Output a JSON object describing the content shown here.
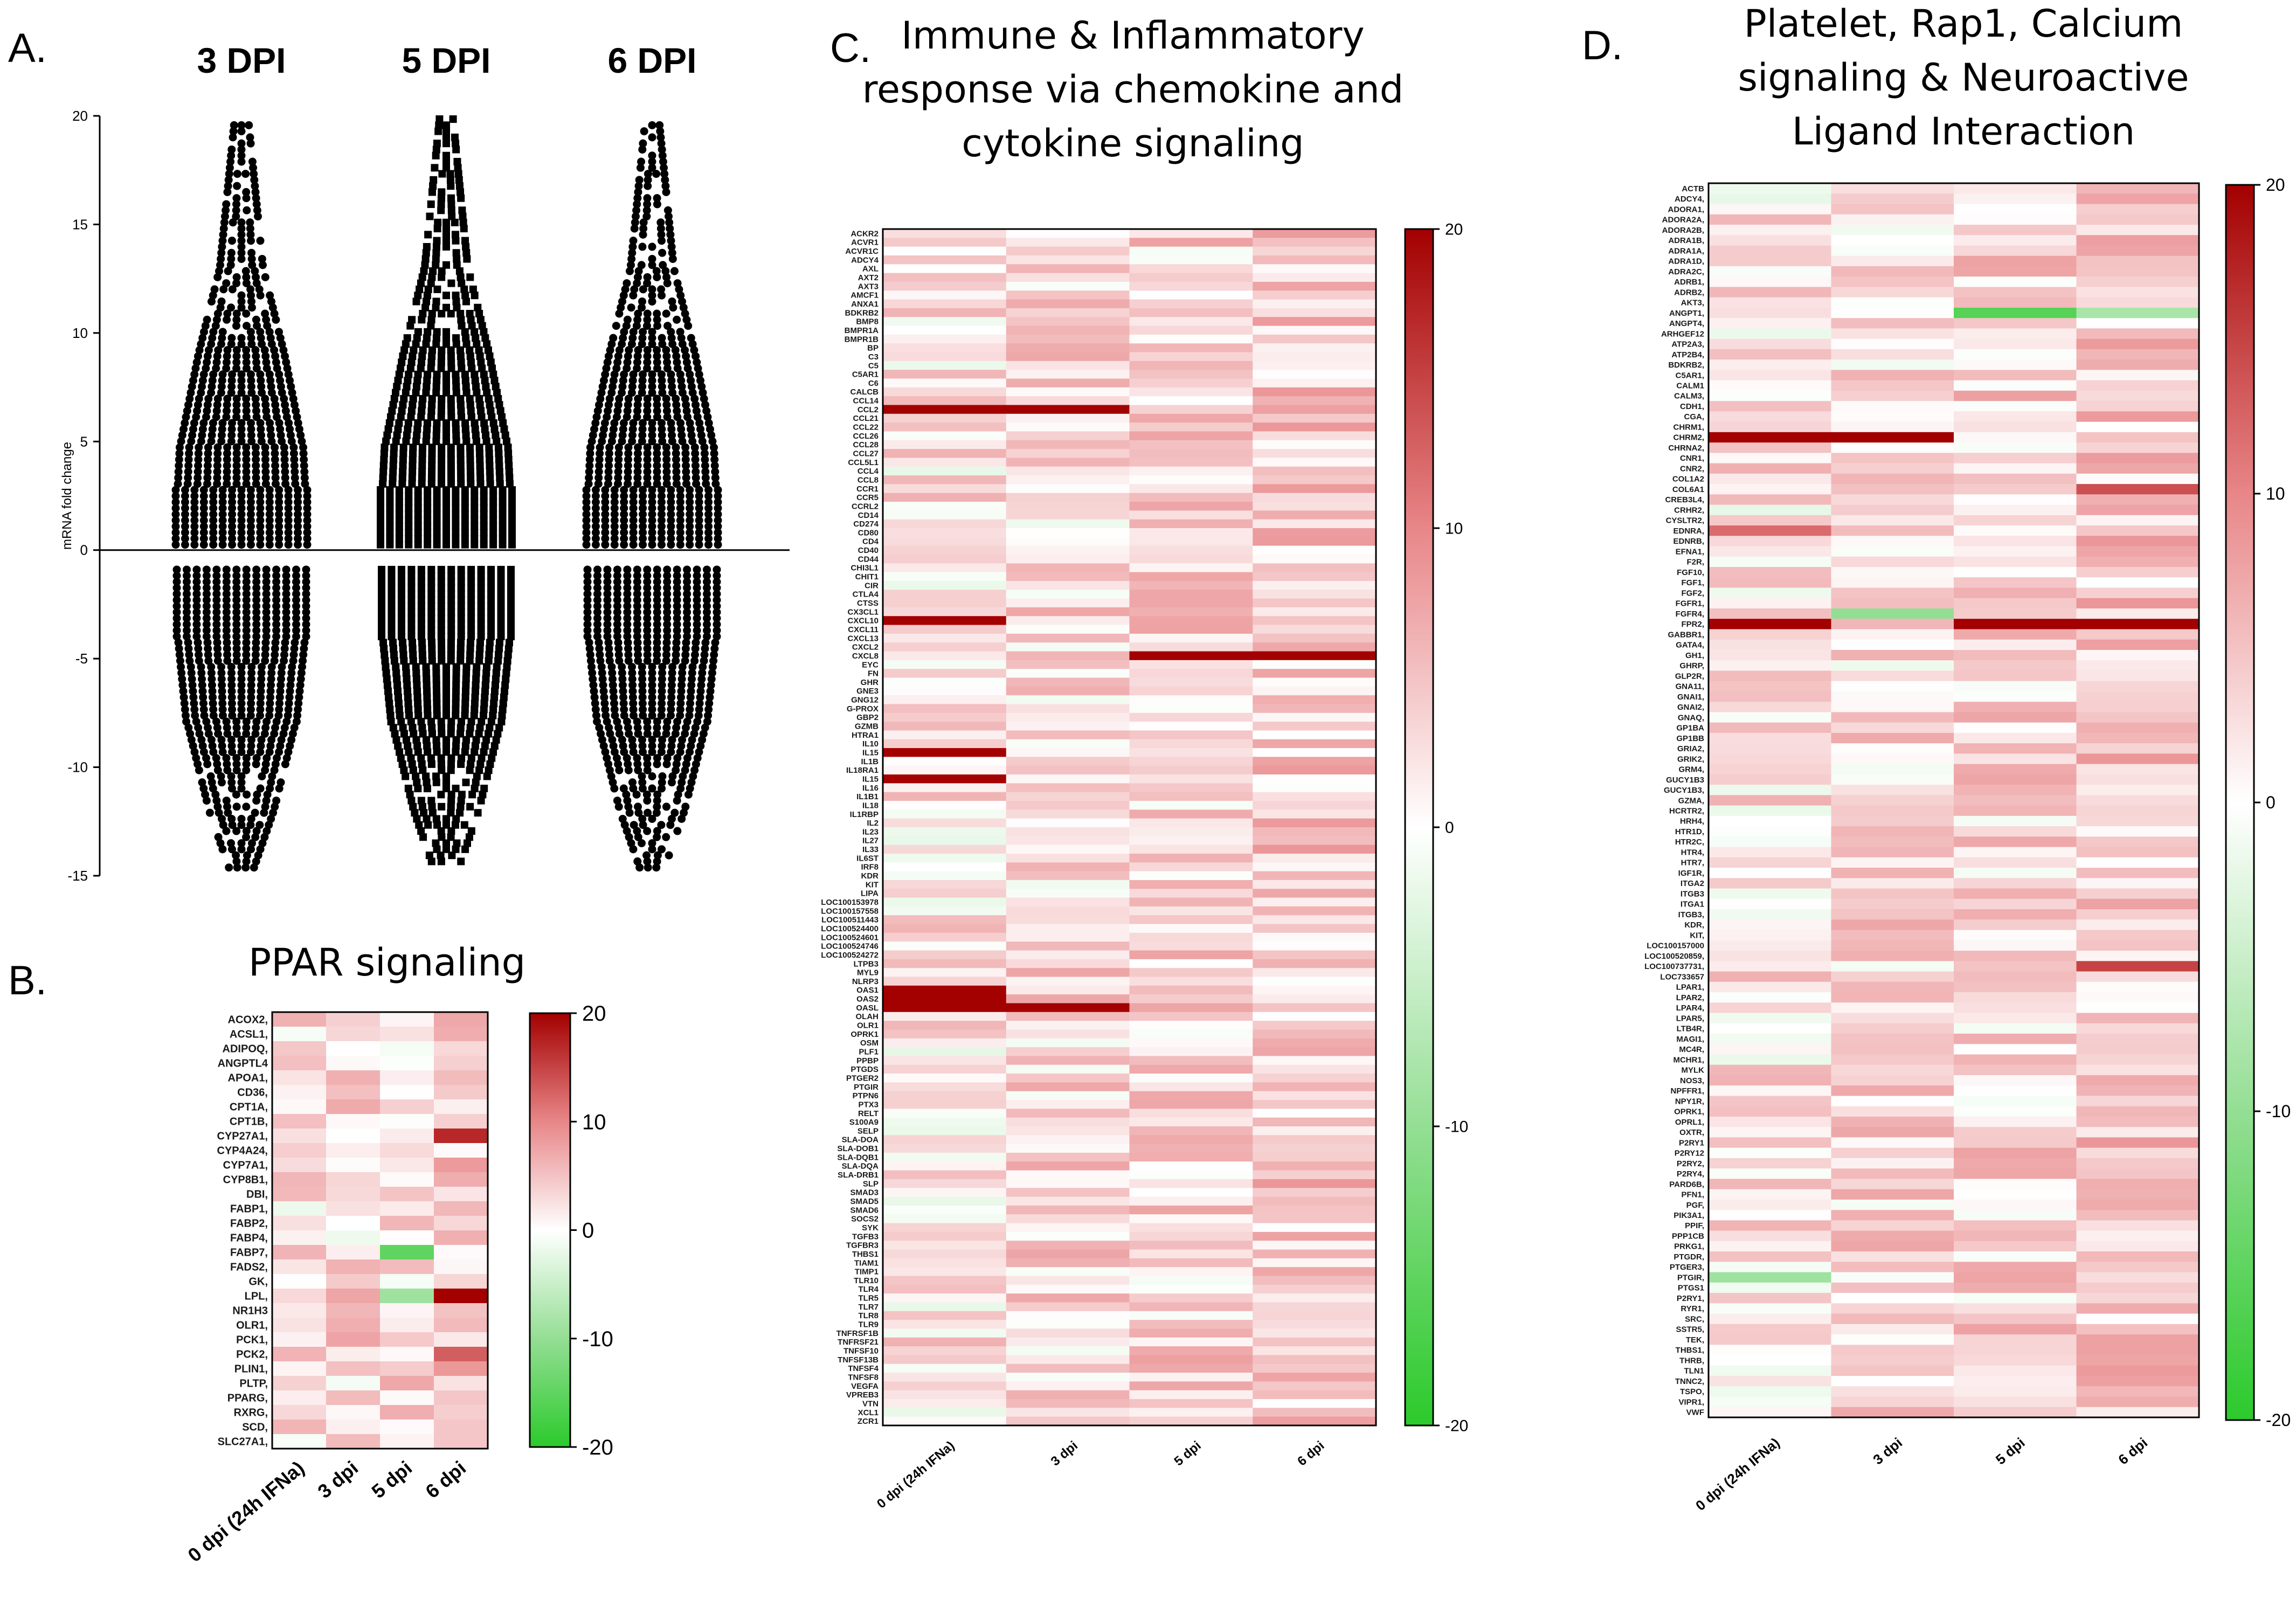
{
  "chart_data": [
    {
      "panel": "A.",
      "type": "scatter",
      "title": "",
      "ylabel": "mRNA fold change",
      "ylim": [
        -15,
        20
      ],
      "yticks": [
        -15,
        -10,
        -5,
        0,
        5,
        10,
        15,
        20
      ],
      "groups": [
        {
          "name": "3 DPI",
          "marker": "circle",
          "up_max": 19.7,
          "down_min": -14.7
        },
        {
          "name": "5 DPI",
          "marker": "square",
          "up_max": 19.9,
          "down_min": -14.5
        },
        {
          "name": "6 DPI",
          "marker": "circle",
          "up_max": 19.6,
          "down_min": -14.8
        }
      ]
    },
    {
      "panel": "B.",
      "type": "heatmap",
      "title": "PPAR signaling",
      "columns": [
        "0 dpi (24h IFNa)",
        "3 dpi",
        "5 dpi",
        "6 dpi"
      ],
      "colorbar": {
        "min": -20,
        "max": 20,
        "ticks": [
          "20",
          "10",
          "0",
          "-10",
          "-20"
        ]
      },
      "rows": [
        "ACOX2,",
        "ACSL1,",
        "ADIPOQ,",
        "ANGPTL4",
        "APOA1,",
        "CD36,",
        "CPT1A,",
        "CPT1B,",
        "CYP27A1,",
        "CYP4A24,",
        "CYP7A1,",
        "CYP8B1,",
        "DBI,",
        "FABP1,",
        "FABP2,",
        "FABP4,",
        "FABP7,",
        "FADS2,",
        "GK,",
        "LPL,",
        "NR1H3",
        "OLR1,",
        "PCK1,",
        "PCK2,",
        "PLIN1,",
        "PLTP,",
        "PPARG,",
        "RXRG,",
        "SCD,",
        "SLC27A1,"
      ],
      "hot": [
        {
          "row": "CYP27A1,",
          "col": 3,
          "value": 17
        },
        {
          "row": "FABP7,",
          "col": 2,
          "value": -15
        },
        {
          "row": "LPL,",
          "col": 2,
          "value": -9
        },
        {
          "row": "LPL,",
          "col": 3,
          "value": 20
        },
        {
          "row": "PCK2,",
          "col": 3,
          "value": 13
        }
      ]
    },
    {
      "panel": "C.",
      "type": "heatmap",
      "title": [
        "Immune & Inflammatory",
        "response via chemokine and",
        "cytokine signaling"
      ],
      "columns": [
        "0 dpi (24h IFNa)",
        "3 dpi",
        "5 dpi",
        "6 dpi"
      ],
      "colorbar": {
        "min": -20,
        "max": 20,
        "ticks": [
          "20",
          "10",
          "0",
          "-10",
          "-20"
        ]
      },
      "rows": [
        "ACKR2",
        "ACVR1",
        "ACVR1C",
        "ADCY4",
        "AXL",
        "AXT2",
        "AXT3",
        "AMCF1",
        "ANXA1",
        "BDKRB2",
        "BMP8",
        "BMPR1A",
        "BMPR1B",
        "BP",
        "C3",
        "C5",
        "C5AR1",
        "C6",
        "CALCB",
        "CCL14",
        "CCL2",
        "CCL21",
        "CCL22",
        "CCL26",
        "CCL28",
        "CCL27",
        "CCL5L1",
        "CCL4",
        "CCL8",
        "CCR1",
        "CCR5",
        "CCRL2",
        "CD14",
        "CD274",
        "CD80",
        "CD4",
        "CD40",
        "CD44",
        "CHI3L1",
        "CHIT1",
        "CIR",
        "CTLA4",
        "CTSS",
        "CX3CL1",
        "CXCL10",
        "CXCL11",
        "CXCL13",
        "CXCL2",
        "CXCL8",
        "EYC",
        "FN",
        "GHR",
        "GNE3",
        "GNG12",
        "G-PROX",
        "GBP2",
        "GZMB",
        "HTRA1",
        "IL10",
        "IL15",
        "IL1B",
        "IL18RA1",
        "IL15",
        "IL16",
        "IL1B1",
        "IL18",
        "IL1RBP",
        "IL2",
        "IL23",
        "IL27",
        "IL33",
        "IL6ST",
        "IRF8",
        "KDR",
        "KIT",
        "LIPA",
        "LOC100153978",
        "LOC100157558",
        "LOC100511443",
        "LOC100524400",
        "LOC100524601",
        "LOC100524746",
        "LOC100524272",
        "LTPB3",
        "MYL9",
        "NLRP3",
        "OAS1",
        "OAS2",
        "OASL",
        "OLAH",
        "OLR1",
        "OPRK1",
        "OSM",
        "PLF1",
        "PPBP",
        "PTGDS",
        "PTGER2",
        "PTGIR",
        "PTPN6",
        "PTX3",
        "RELT",
        "S100A9",
        "SELP",
        "SLA-DOA",
        "SLA-DOB1",
        "SLA-DQB1",
        "SLA-DQA",
        "SLA-DRB1",
        "SLP",
        "SMAD3",
        "SMAD5",
        "SMAD6",
        "SOCS2",
        "SYK",
        "TGFB3",
        "TGFBR3",
        "THBS1",
        "TIAM1",
        "TIMP1",
        "TLR10",
        "TLR4",
        "TLR5",
        "TLR7",
        "TLR8",
        "TLR9",
        "TNFRSF1B",
        "TNFRSF21",
        "TNFSF10",
        "TNFSF13B",
        "TNFSF4",
        "TNFSF8",
        "VEGFA",
        "VPREB3",
        "VTN",
        "XCL1",
        "ZCR1"
      ],
      "hot": [
        {
          "row": "CCL2",
          "col": 0,
          "value": 20
        },
        {
          "row": "CCL2",
          "col": 1,
          "value": 20
        },
        {
          "row": "CXCL10",
          "col": 0,
          "value": 20
        },
        {
          "row": "CXCL8",
          "col": 2,
          "value": 20
        },
        {
          "row": "CXCL8",
          "col": 3,
          "value": 20
        },
        {
          "row": "IL15",
          "col": 0,
          "value": 20
        },
        {
          "row": "OAS1",
          "col": 0,
          "value": 20
        },
        {
          "row": "OAS2",
          "col": 0,
          "value": 20
        },
        {
          "row": "OASL",
          "col": 0,
          "value": 20
        },
        {
          "row": "OASL",
          "col": 1,
          "value": 20
        }
      ]
    },
    {
      "panel": "D.",
      "type": "heatmap",
      "title": [
        "Platelet, Rap1, Calcium",
        "signaling & Neuroactive",
        "Ligand Interaction"
      ],
      "columns": [
        "0 dpi (24h IFNa)",
        "3 dpi",
        "5 dpi",
        "6 dpi"
      ],
      "colorbar": {
        "min": -20,
        "max": 20,
        "ticks": [
          "20",
          "10",
          "0",
          "-10",
          "-20"
        ]
      },
      "rows": [
        "ACTB",
        "ADCY4,",
        "ADORA1,",
        "ADORA2A,",
        "ADORA2B,",
        "ADRA1B,",
        "ADRA1A,",
        "ADRA1D,",
        "ADRA2C,",
        "ADRB1,",
        "ADRB2,",
        "AKT3,",
        "ANGPT1,",
        "ANGPT4,",
        "ARHGEF12",
        "ATP2A3,",
        "ATP2B4,",
        "BDKRB2,",
        "C5AR1,",
        "CALM1",
        "CALM3,",
        "CDH1,",
        "CGA,",
        "CHRM1,",
        "CHRM2,",
        "CHRNA2,",
        "CNR1,",
        "CNR2,",
        "COL1A2",
        "COL6A1",
        "CREB3L4,",
        "CRHR2,",
        "CYSLTR2,",
        "EDNRA,",
        "EDNRB,",
        "EFNA1,",
        "F2R,",
        "FGF10,",
        "FGF1,",
        "FGF2,",
        "FGFR1,",
        "FGFR4,",
        "FPR2,",
        "GABBR1,",
        "GATA4,",
        "GH1,",
        "GHRP,",
        "GLP2R,",
        "GNA11,",
        "GNAI1,",
        "GNAI2,",
        "GNAQ,",
        "GP1BA",
        "GP1BB",
        "GRIA2,",
        "GRIK2,",
        "GRM4,",
        "GUCY1B3",
        "GUCY1B3,",
        "GZMA,",
        "HCRTR2,",
        "HRH4,",
        "HTR1D,",
        "HTR2C,",
        "HTR4,",
        "HTR7,",
        "IGF1R,",
        "ITGA2",
        "ITGB3",
        "ITGA1",
        "ITGB3,",
        "KDR,",
        "KIT,",
        "LOC100157000",
        "LOC100520859,",
        "LOC100737731,",
        "LOC733657",
        "LPAR1,",
        "LPAR2,",
        "LPAR4,",
        "LPAR5,",
        "LTB4R,",
        "MAGI1,",
        "MC4R,",
        "MCHR1,",
        "MYLK",
        "NOS3,",
        "NPFFR1,",
        "NPY1R,",
        "OPRK1,",
        "OPRL1,",
        "OXTR,",
        "P2RY1",
        "P2RY12",
        "P2RY2,",
        "P2RY4,",
        "PARD6B,",
        "PFN1,",
        "PGF,",
        "PIK3A1,",
        "PPIF,",
        "PPP1CB",
        "PRKG1,",
        "PTGDR,",
        "PTGER3,",
        "PTGIR,",
        "PTGS1",
        "P2RY1,",
        "RYR1,",
        "SRC,",
        "SSTR5,",
        "TEK,",
        "THBS1,",
        "THRB,",
        "TLN1",
        "TNNC2,",
        "TSPO,",
        "VIPR1,",
        "VWF"
      ],
      "hot": [
        {
          "row": "ANGPT1,",
          "col": 2,
          "value": -16
        },
        {
          "row": "ANGPT1,",
          "col": 3,
          "value": -8
        },
        {
          "row": "CHRM2,",
          "col": 0,
          "value": 20
        },
        {
          "row": "CHRM2,",
          "col": 1,
          "value": 20
        },
        {
          "row": "COL6A1",
          "col": 3,
          "value": 14
        },
        {
          "row": "EDNRA,",
          "col": 0,
          "value": 12
        },
        {
          "row": "FGFR4,",
          "col": 1,
          "value": -10
        },
        {
          "row": "FPR2,",
          "col": 0,
          "value": 20
        },
        {
          "row": "FPR2,",
          "col": 1,
          "value": 6
        },
        {
          "row": "FPR2,",
          "col": 2,
          "value": 20
        },
        {
          "row": "FPR2,",
          "col": 3,
          "value": 20
        },
        {
          "row": "LOC100737731,",
          "col": 3,
          "value": 15
        },
        {
          "row": "PTGIR,",
          "col": 0,
          "value": -9
        }
      ]
    }
  ]
}
